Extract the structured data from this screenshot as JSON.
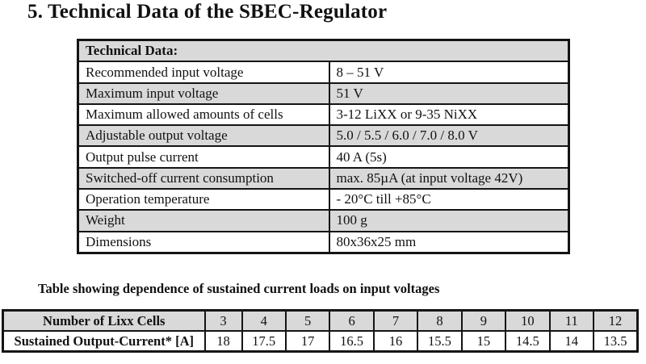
{
  "page_title": "5. Technical Data of the SBEC-Regulator",
  "tech_table": {
    "header": "Technical Data:",
    "rows": [
      {
        "label": "Recommended input voltage",
        "value": "8 – 51 V"
      },
      {
        "label": "Maximum input voltage",
        "value": "51 V"
      },
      {
        "label": "Maximum allowed amounts of cells",
        "value": "3-12 LiXX or 9-35 NiXX"
      },
      {
        "label": "Adjustable output voltage",
        "value": "5.0 / 5.5 / 6.0 / 7.0 / 8.0 V"
      },
      {
        "label": "Output pulse current",
        "value": "40 A (5s)"
      },
      {
        "label": "Switched-off current consumption",
        "value": "max. 85µA (at input voltage 42V)"
      },
      {
        "label": "Operation temperature",
        "value": "- 20°C till +85°C"
      },
      {
        "label": "Weight",
        "value": "100 g"
      },
      {
        "label": "Dimensions",
        "value": "80x36x25 mm"
      }
    ]
  },
  "current_table": {
    "caption": "Table showing dependence of sustained current loads on input voltages",
    "row1_label": "Number of Lixx Cells",
    "row2_label": "Sustained Output-Current* [A]",
    "cells": [
      "3",
      "4",
      "5",
      "6",
      "7",
      "8",
      "9",
      "10",
      "11",
      "12"
    ],
    "currents": [
      "18",
      "17.5",
      "17",
      "16.5",
      "16",
      "15.5",
      "15",
      "14.5",
      "14",
      "13.5"
    ]
  },
  "colors": {
    "row_shade": "#d9d9d9",
    "border": "#141414",
    "page_background": "#ffffff"
  }
}
